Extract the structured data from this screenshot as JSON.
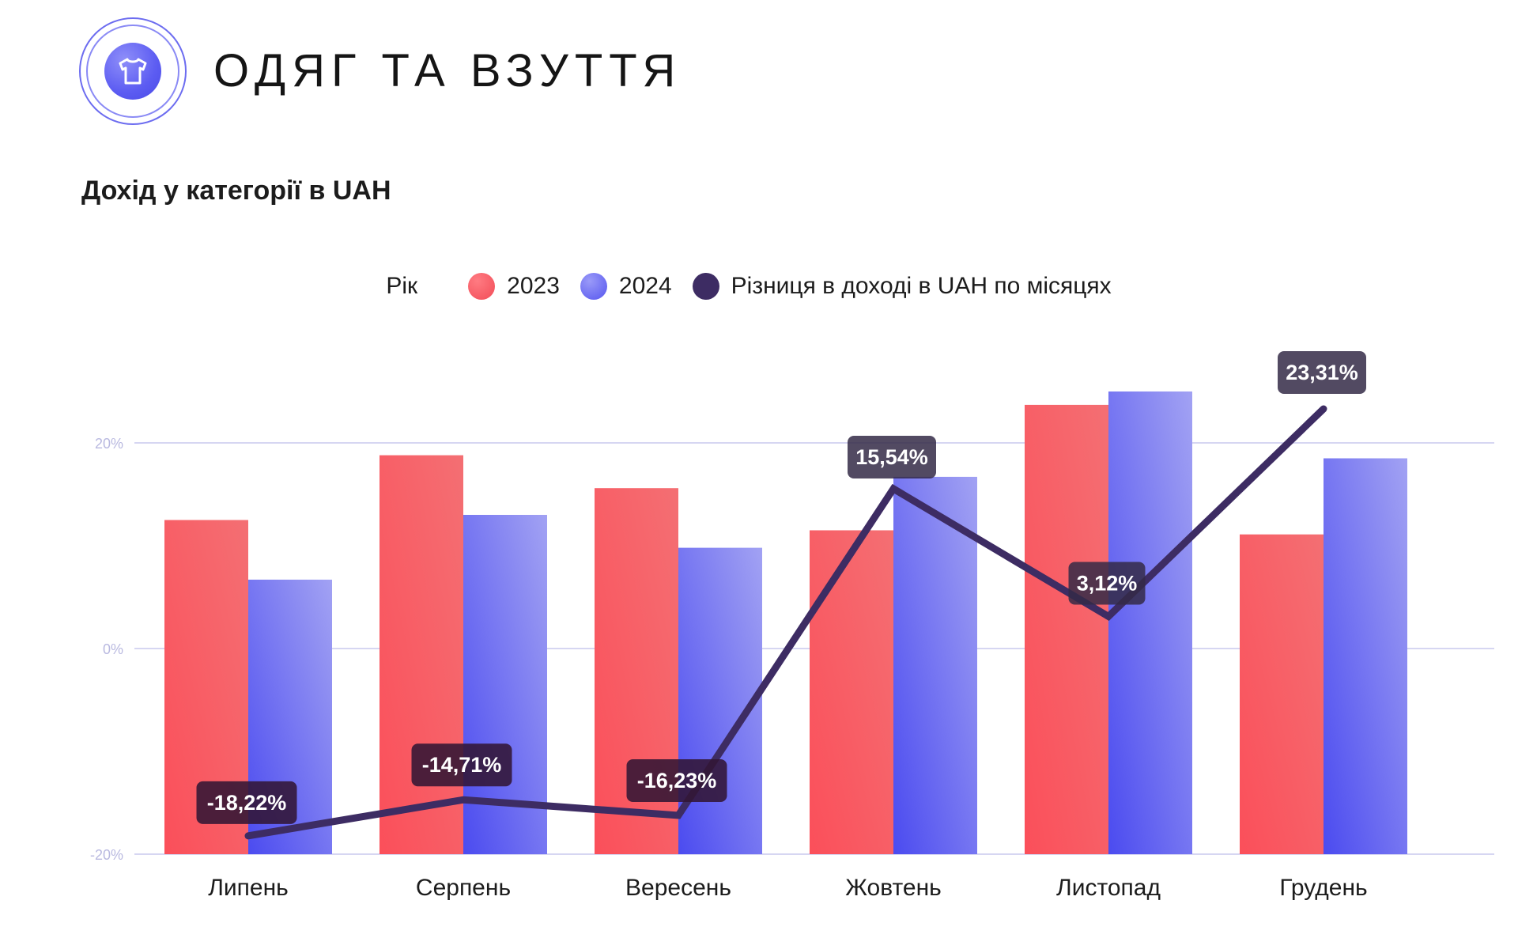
{
  "header": {
    "title": "ОДЯГ ТА ВЗУТТЯ",
    "icon": "t-shirt-icon"
  },
  "subtitle": "Дохід у категорії в UAH",
  "legend": {
    "title": "Рік",
    "items": [
      {
        "label": "2023",
        "color": "#f45a63"
      },
      {
        "label": "2024",
        "color": "#6b6bf4"
      },
      {
        "label": "Різниця в доході в UAH по місяцях",
        "color": "#3d2c63"
      }
    ]
  },
  "chart_data": {
    "type": "bar",
    "categories": [
      "Липень",
      "Серпень",
      "Вересень",
      "Жовтень",
      "Листопад",
      "Грудень"
    ],
    "series": [
      {
        "name": "2023",
        "type": "bar",
        "values": [
          12.5,
          18.8,
          15.6,
          11.5,
          23.7,
          11.1
        ]
      },
      {
        "name": "2024",
        "type": "bar",
        "values": [
          6.7,
          13.0,
          9.8,
          16.7,
          25.0,
          18.5
        ]
      },
      {
        "name": "Різниця в доході в UAH по місяцях",
        "type": "line",
        "values": [
          -18.22,
          -14.71,
          -16.23,
          15.54,
          3.12,
          23.31
        ]
      }
    ],
    "data_labels": [
      "-18,22%",
      "-14,71%",
      "-16,23%",
      "15,54%",
      "3,12%",
      "23,31%"
    ],
    "yticks": [
      {
        "value": 20,
        "label": "20%"
      },
      {
        "value": 0,
        "label": "0%"
      },
      {
        "value": -20,
        "label": "-20%"
      }
    ],
    "ylim": [
      -20,
      25
    ],
    "grid": true,
    "legend_position": "top-center"
  }
}
